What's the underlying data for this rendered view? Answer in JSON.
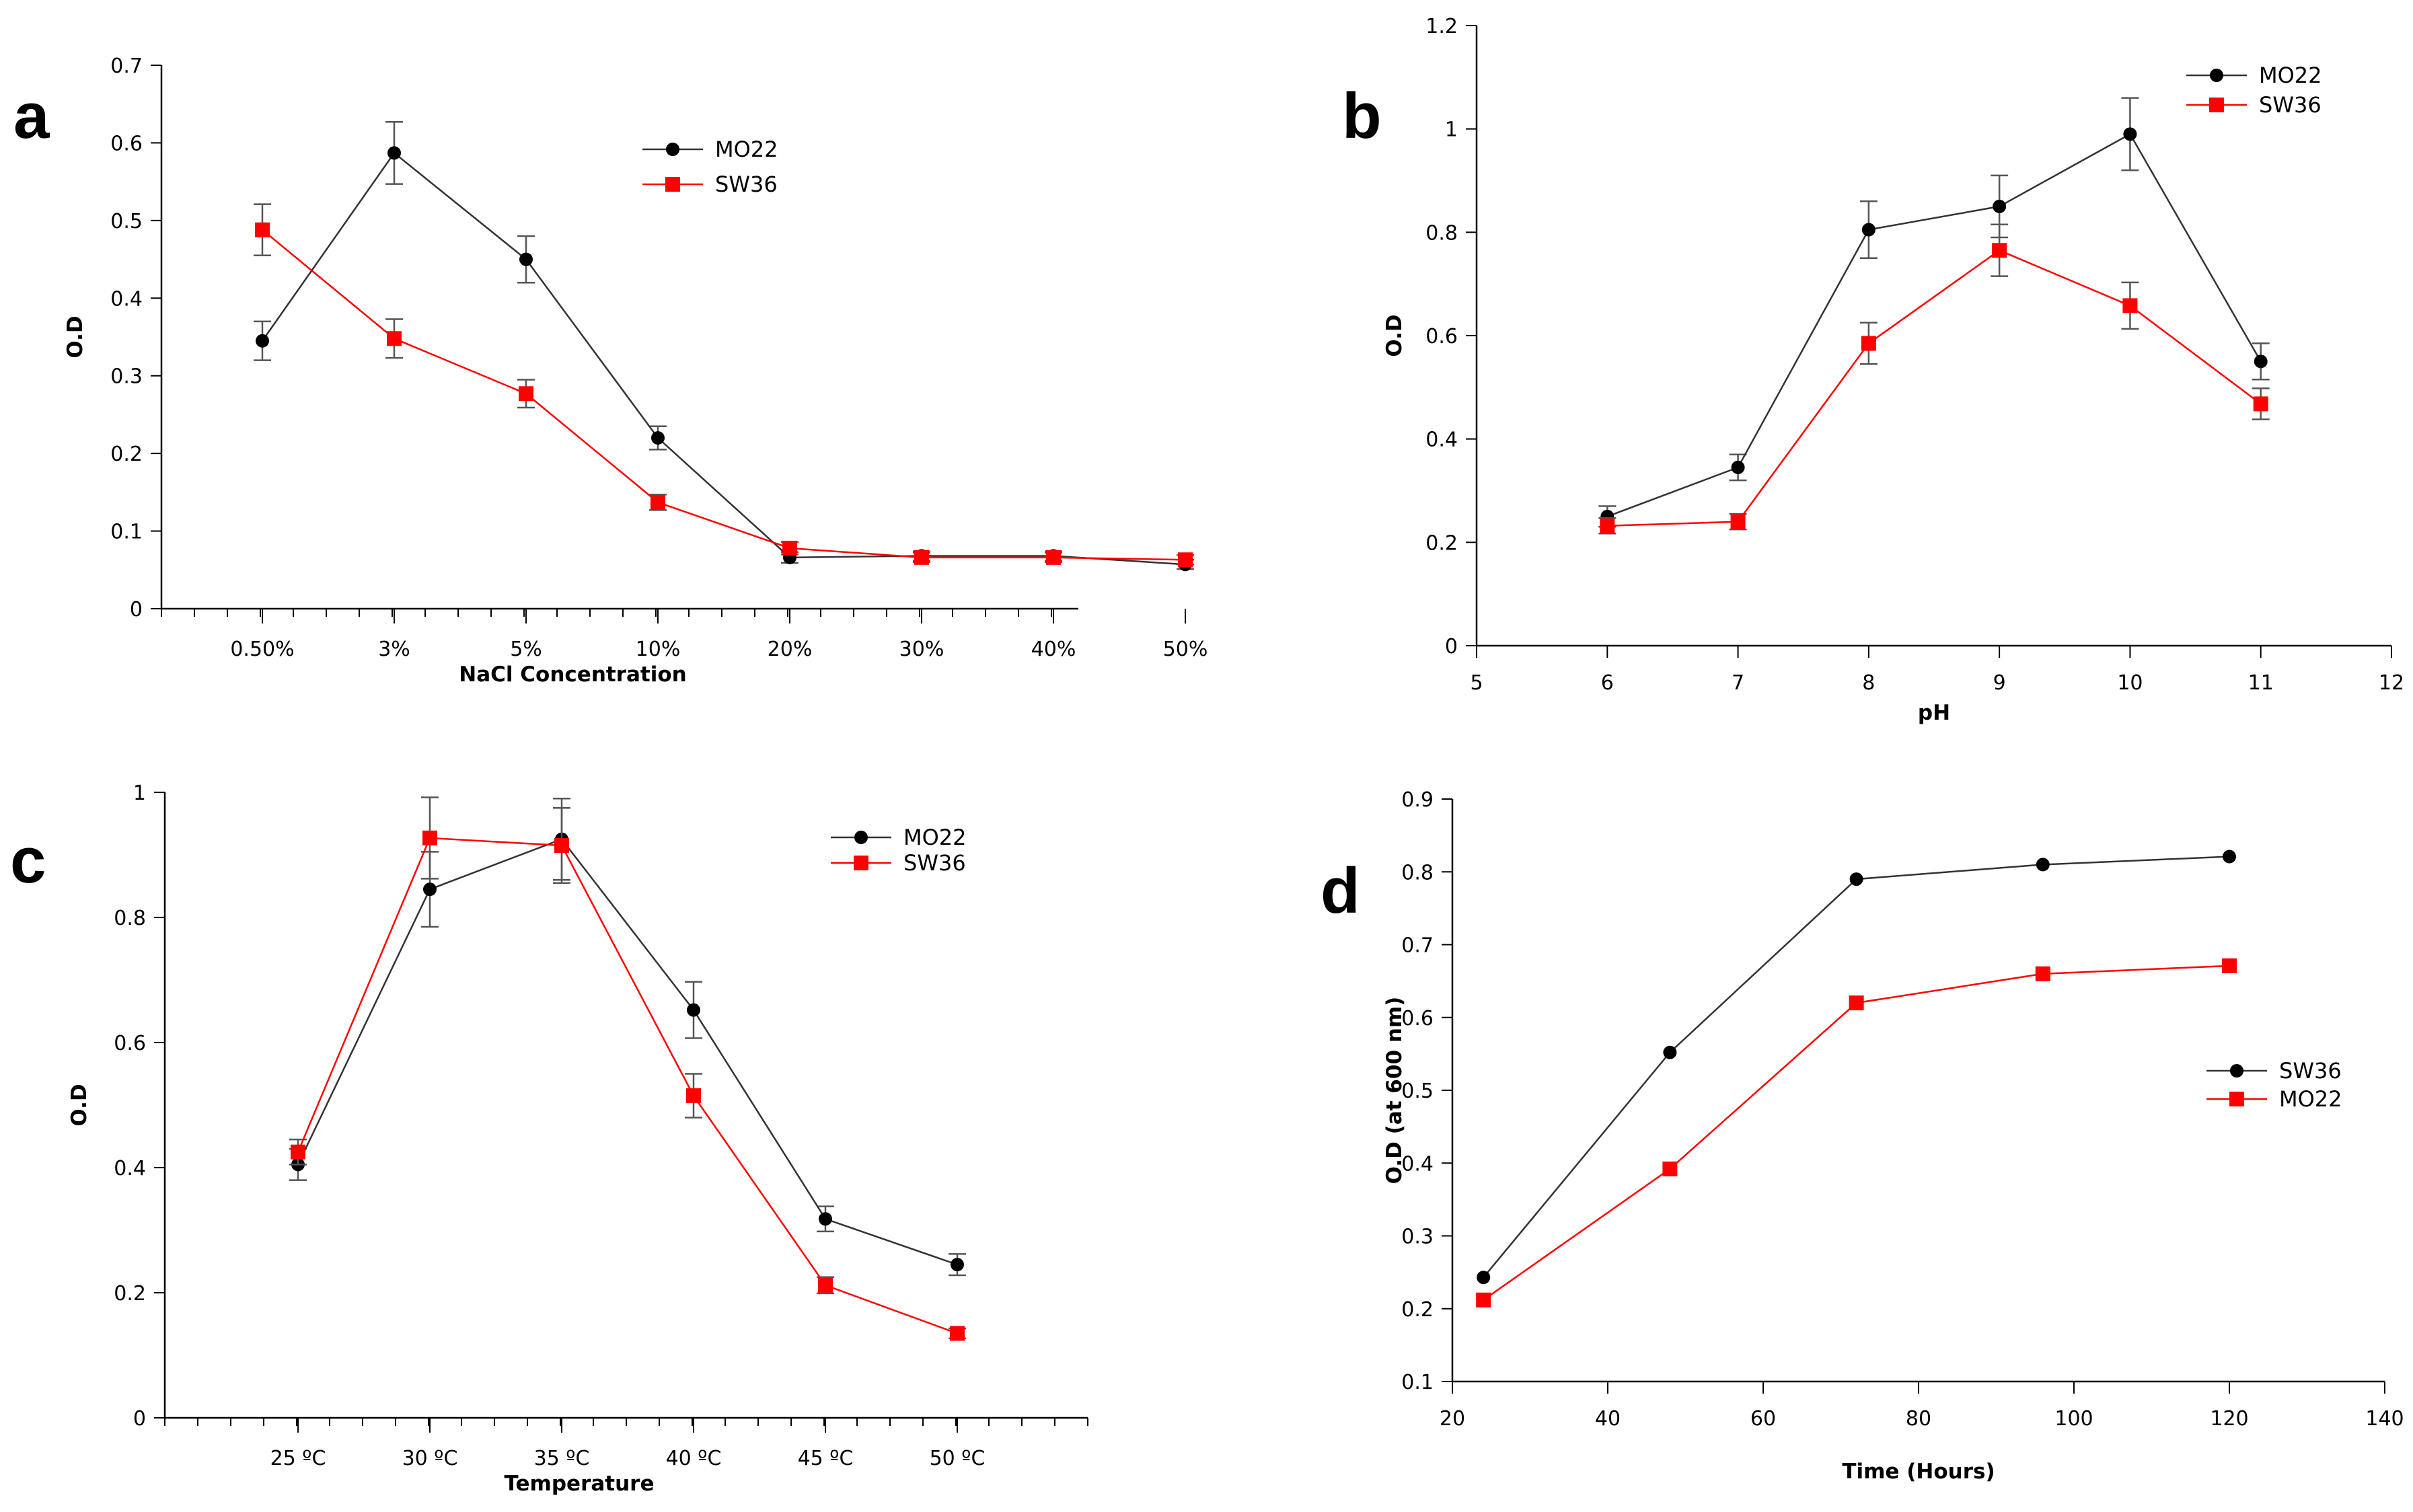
{
  "chart_data": [
    {
      "panel": "a",
      "type": "line",
      "xtype": "category",
      "categories": [
        "0.50%",
        "3%",
        "5%",
        "10%",
        "20%",
        "30%",
        "40%",
        "50%"
      ],
      "xlabel": "NaCl Concentration",
      "ylabel": "O.D",
      "ylim": [
        0,
        0.7
      ],
      "yticks": [
        0,
        0.1,
        0.2,
        0.3,
        0.4,
        0.5,
        0.6,
        0.7
      ],
      "ytick_labels": [
        "0",
        "0.1",
        "0.2",
        "0.3",
        "0.4",
        "0.5",
        "0.6",
        "0.7"
      ],
      "legend_position": "top-right",
      "series": [
        {
          "name": "MO22",
          "color": "#000000",
          "marker": "circle",
          "values": [
            0.345,
            0.587,
            0.45,
            0.22,
            0.066,
            0.068,
            0.068,
            0.057
          ],
          "errors": [
            0.025,
            0.04,
            0.03,
            0.015,
            0.007,
            0.006,
            0.006,
            0.006
          ]
        },
        {
          "name": "SW36",
          "color": "#ff0000",
          "marker": "square",
          "values": [
            0.488,
            0.348,
            0.277,
            0.137,
            0.078,
            0.066,
            0.066,
            0.063
          ],
          "errors": [
            0.033,
            0.025,
            0.018,
            0.01,
            0.008,
            0.006,
            0.006,
            0.006
          ]
        }
      ]
    },
    {
      "panel": "b",
      "type": "line",
      "xtype": "numeric",
      "xlabel": "pH",
      "ylabel": "O.D",
      "xlim": [
        5,
        12
      ],
      "xticks": [
        5,
        6,
        7,
        8,
        9,
        10,
        11,
        12
      ],
      "xtick_labels": [
        "5",
        "6",
        "7",
        "8",
        "9",
        "10",
        "11",
        "12"
      ],
      "ylim": [
        0,
        1.2
      ],
      "yticks": [
        0,
        0.2,
        0.4,
        0.6,
        0.8,
        1.0,
        1.2
      ],
      "ytick_labels": [
        "0",
        "0.2",
        "0.4",
        "0.6",
        "0.8",
        "1",
        "1.2"
      ],
      "legend_position": "top-right",
      "series": [
        {
          "name": "MO22",
          "color": "#000000",
          "marker": "circle",
          "x": [
            6,
            7,
            8,
            9,
            10,
            11
          ],
          "values": [
            0.25,
            0.345,
            0.805,
            0.85,
            0.99,
            0.55
          ],
          "errors": [
            0.02,
            0.025,
            0.055,
            0.06,
            0.07,
            0.035
          ]
        },
        {
          "name": "SW36",
          "color": "#ff0000",
          "marker": "square",
          "x": [
            6,
            7,
            8,
            9,
            10,
            11
          ],
          "values": [
            0.232,
            0.24,
            0.585,
            0.765,
            0.658,
            0.468
          ],
          "errors": [
            0.015,
            0.015,
            0.04,
            0.05,
            0.045,
            0.03
          ]
        }
      ]
    },
    {
      "panel": "c",
      "type": "line",
      "xtype": "category",
      "categories": [
        "25 ºC",
        "30 ºC",
        "35 ºC",
        "40 ºC",
        "45 ºC",
        "50 ºC"
      ],
      "xlabel": "Temperature",
      "ylabel": "O.D",
      "ylim": [
        0,
        1
      ],
      "yticks": [
        0,
        0.2,
        0.4,
        0.6,
        0.8,
        1.0
      ],
      "ytick_labels": [
        "0",
        "0.2",
        "0.4",
        "0.6",
        "0.8",
        "1"
      ],
      "legend_position": "top-right",
      "series": [
        {
          "name": "MO22",
          "color": "#000000",
          "marker": "circle",
          "values": [
            0.405,
            0.845,
            0.925,
            0.652,
            0.318,
            0.245
          ],
          "errors": [
            0.025,
            0.06,
            0.065,
            0.045,
            0.02,
            0.017
          ]
        },
        {
          "name": "SW36",
          "color": "#ff0000",
          "marker": "square",
          "values": [
            0.425,
            0.927,
            0.915,
            0.515,
            0.212,
            0.135
          ],
          "errors": [
            0.02,
            0.065,
            0.06,
            0.035,
            0.013,
            0.008
          ]
        }
      ]
    },
    {
      "panel": "d",
      "type": "line",
      "xtype": "numeric",
      "xlabel": "Time (Hours)",
      "ylabel": "O.D (at 600 nm)",
      "xlim": [
        20,
        140
      ],
      "xticks": [
        20,
        40,
        60,
        80,
        100,
        120,
        140
      ],
      "xtick_labels": [
        "20",
        "40",
        "60",
        "80",
        "100",
        "120",
        "140"
      ],
      "ylim": [
        0.1,
        0.9
      ],
      "yticks": [
        0.1,
        0.2,
        0.3,
        0.4,
        0.5,
        0.6,
        0.7,
        0.8,
        0.9
      ],
      "ytick_labels": [
        "0.1",
        "0.2",
        "0.3",
        "0.4",
        "0.5",
        "0.6",
        "0.7",
        "0.8",
        "0.9"
      ],
      "legend_position": "right",
      "series": [
        {
          "name": "SW36",
          "color": "#000000",
          "marker": "circle",
          "x": [
            24,
            48,
            72,
            96,
            120
          ],
          "values": [
            0.243,
            0.552,
            0.79,
            0.81,
            0.821
          ]
        },
        {
          "name": "MO22",
          "color": "#ff0000",
          "marker": "square",
          "x": [
            24,
            48,
            72,
            96,
            120
          ],
          "values": [
            0.212,
            0.392,
            0.62,
            0.66,
            0.671
          ]
        }
      ]
    }
  ]
}
